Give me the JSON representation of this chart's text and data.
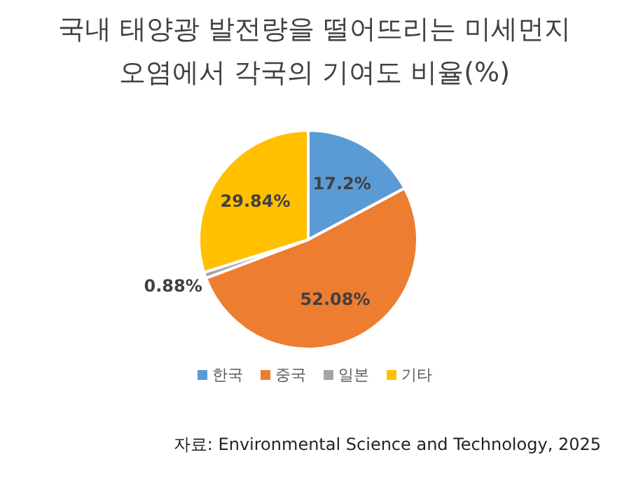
{
  "chart_data": {
    "type": "pie",
    "title": "국내 태양광 발전량을 떨어뜨리는 미세먼지\n오염에서 각국의 기여도 비율(%)",
    "categories": [
      "한국",
      "중국",
      "일본",
      "기타"
    ],
    "values": [
      17.2,
      52.08,
      0.88,
      29.84
    ],
    "colors": [
      "#5b9bd5",
      "#ed7d31",
      "#a5a5a5",
      "#ffc000"
    ],
    "value_labels": [
      "17.2%",
      "52.08%",
      "0.88%",
      "29.84%"
    ],
    "legend": "bottom",
    "annotations": [
      "자료: Environmental Science and Technology, 2025"
    ]
  }
}
